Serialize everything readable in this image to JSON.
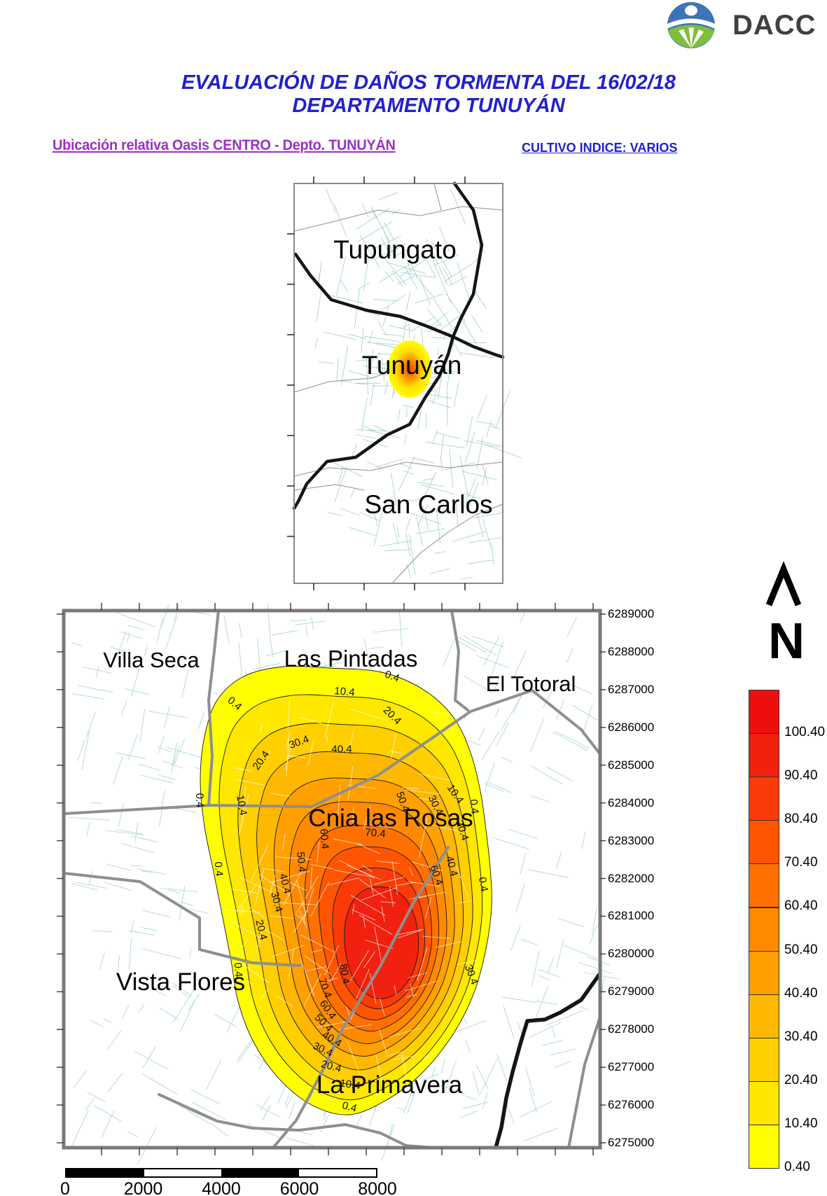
{
  "header": {
    "logo_text": "DACC",
    "title_line1": "EVALUACIÓN DE DAÑOS TORMENTA DEL 16/02/18",
    "title_line2": "DEPARTAMENTO TUNUYÁN",
    "subtitle_left": "Ubicación relativa Oasis CENTRO - Depto. TUNUYÁN",
    "subtitle_right": "CULTIVO INDICE: VARIOS",
    "title_color": "#2121CE",
    "subtitle_left_color": "#9B30C8"
  },
  "locator_map": {
    "labels": [
      "Tupungato",
      "Tunuyán",
      "San Carlos"
    ],
    "hotspot_colors": [
      "#FF3D00",
      "#FF9500",
      "#FFE000",
      "#FFFF00"
    ]
  },
  "main_map": {
    "place_labels": [
      "Villa Seca",
      "Las Pintadas",
      "El Totoral",
      "Cnia las Rosas",
      "Vista Flores",
      "La Primavera"
    ],
    "contour_labels": [
      "0.4",
      "10.4",
      "20.4",
      "30.4",
      "40.4",
      "20.4",
      "0.4",
      "10.4",
      "50.4",
      "30.4",
      "10.4",
      "0.4",
      "20.4",
      "70.4",
      "60.4",
      "50.4",
      "0.4",
      "40.4",
      "30.4",
      "20.4",
      "0.4",
      "80.4",
      "70.4",
      "60.4",
      "50.4",
      "40.4",
      "30.4",
      "20.4",
      "10.4",
      "0.4",
      "30.4",
      "0.4",
      "40.4",
      "60.4",
      "0.4"
    ],
    "y_axis": [
      "6289000",
      "6288000",
      "6287000",
      "6286000",
      "6285000",
      "6284000",
      "6283000",
      "6282000",
      "6281000",
      "6280000",
      "6279000",
      "6278000",
      "6277000",
      "6276000",
      "6275000"
    ],
    "parcel_color": "#A7D2CF",
    "boundary_road_color": "#8F8F8F",
    "main_road_color": "#151515"
  },
  "north_arrow": {
    "label": "N"
  },
  "legend": {
    "values": [
      "100.40",
      "90.40",
      "80.40",
      "70.40",
      "60.40",
      "50.40",
      "40.40",
      "30.40",
      "20.40",
      "10.40",
      "0.40"
    ],
    "colors": [
      "#EF0E0E",
      "#F2200E",
      "#FA3B08",
      "#FF5400",
      "#FF7000",
      "#FF8A00",
      "#FFA000",
      "#FFB800",
      "#FFCF00",
      "#FFE700",
      "#FFFF00"
    ]
  },
  "scale_bar": {
    "labels": [
      "0",
      "2000",
      "4000",
      "6000",
      "8000"
    ]
  }
}
